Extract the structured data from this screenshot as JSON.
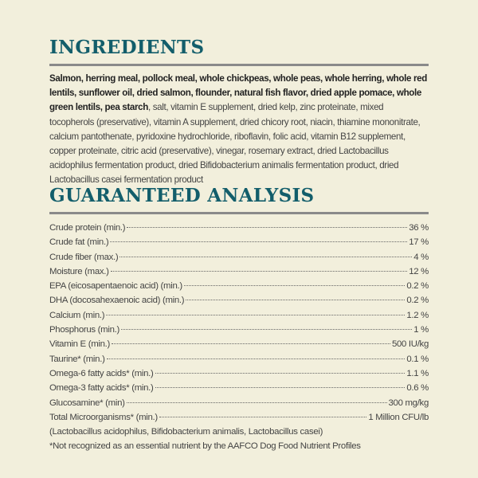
{
  "ingredients": {
    "title": "INGREDIENTS",
    "bold_text": "Salmon, herring meal, pollock meal, whole chickpeas, whole peas, whole herring, whole red lentils, sunflower oil, dried salmon, flounder, natural fish flavor, dried apple pomace, whole green lentils, pea starch",
    "regular_text": ", salt, vitamin E supplement, dried kelp, zinc proteinate, mixed tocopherols (preservative), vitamin A supplement, dried chicory root, niacin, thiamine mononitrate, calcium pantothenate, pyridoxine hydrochloride, riboflavin, folic acid, vitamin B12 supplement, copper proteinate, citric acid (preservative), vinegar, rosemary extract, dried Lactobacillus acidophilus fermentation product, dried Bifidobacterium animalis fermentation product, dried Lactobacillus casei fermentation product"
  },
  "analysis": {
    "title": "GUARANTEED ANALYSIS",
    "rows": [
      {
        "label": "Crude protein (min.)",
        "value": "36 %"
      },
      {
        "label": "Crude fat (min.)",
        "value": "17 %"
      },
      {
        "label": "Crude fiber (max.)",
        "value": "4 %"
      },
      {
        "label": "Moisture (max.)",
        "value": "12 %"
      },
      {
        "label": "EPA (eicosapentaenoic acid) (min.)",
        "value": "0.2 %"
      },
      {
        "label": "DHA (docosahexaenoic acid) (min.)",
        "value": "0.2 %"
      },
      {
        "label": "Calcium (min.)",
        "value": "1.2 %"
      },
      {
        "label": "Phosphorus (min.)",
        "value": "1 %"
      },
      {
        "label": "Vitamin E (min.)",
        "value": "500 IU/kg"
      },
      {
        "label": "Taurine* (min.)",
        "value": "0.1 %"
      },
      {
        "label": "Omega-6 fatty acids* (min.)",
        "value": "1.1 %"
      },
      {
        "label": "Omega-3 fatty acids* (min.)",
        "value": "0.6 %"
      },
      {
        "label": "Glucosamine* (min)",
        "value": "300 mg/kg"
      },
      {
        "label": "Total Microorganisms* (min.)",
        "value": "1 Million CFU/lb"
      }
    ],
    "microorganisms_note": "(Lactobacillus acidophilus, Bifidobacterium animalis, Lactobacillus casei)",
    "footnote": "*Not recognized as an essential nutrient by the AAFCO Dog Food Nutrient Profiles"
  },
  "colors": {
    "background": "#f2efdc",
    "heading": "#135e6b",
    "rule": "#8a8a8a"
  }
}
